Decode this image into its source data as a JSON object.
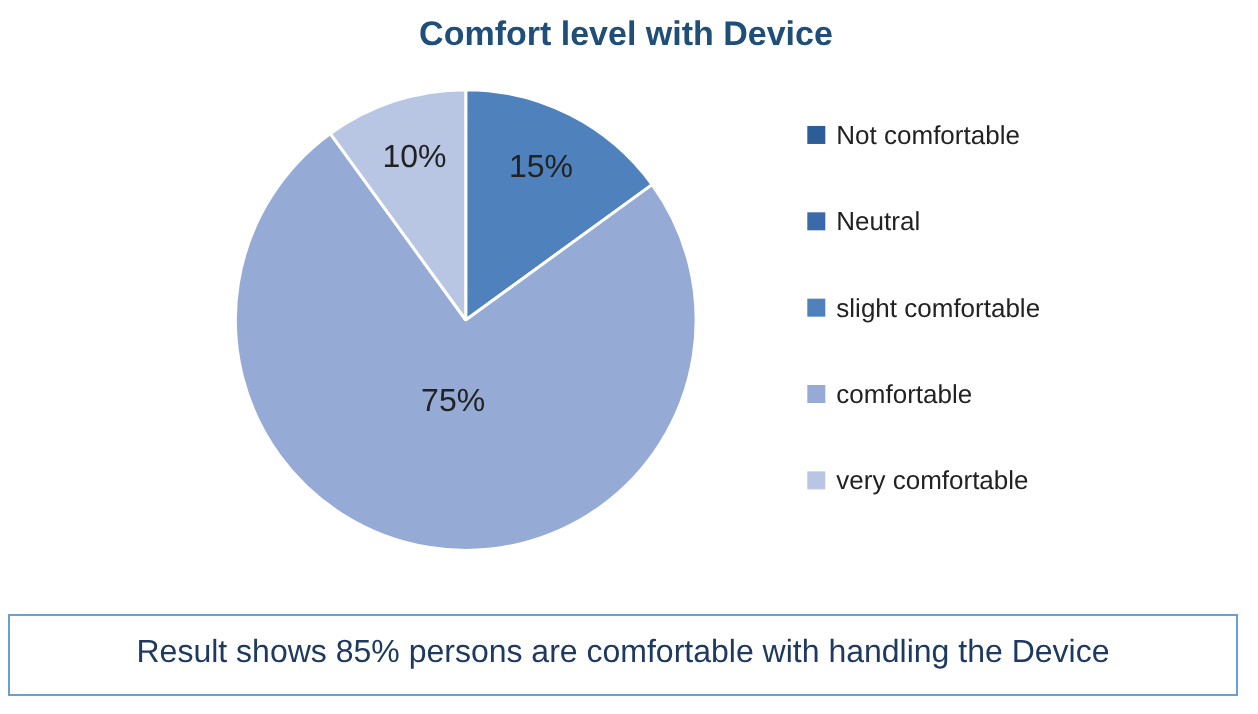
{
  "chart_data": {
    "type": "pie",
    "title": "Comfort level with Device",
    "categories": [
      "Not comfortable",
      "Neutral",
      "slight comfortable",
      "comfortable",
      "very comfortable"
    ],
    "values": [
      0,
      0,
      15,
      75,
      10
    ],
    "colors": [
      "#2c5d98",
      "#3b6aab",
      "#4f81bd",
      "#95abd5",
      "#b9c6e3"
    ],
    "value_labels": [
      null,
      null,
      "15%",
      "75%",
      "10%"
    ],
    "legend": "right",
    "annotations": [
      "Result shows 85% persons are comfortable with handling the Device"
    ]
  }
}
